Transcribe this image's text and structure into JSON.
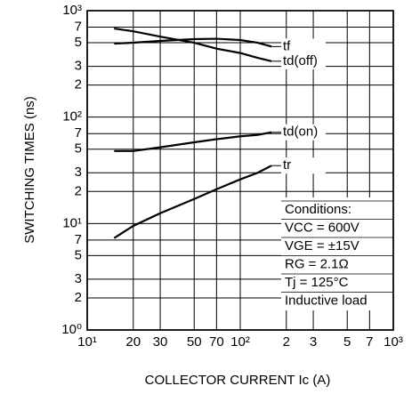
{
  "chart_data": {
    "type": "line",
    "x_label": "COLLECTOR CURRENT  Ic (A)",
    "y_label": "SWITCHING TIMES (ns)",
    "xlog": true,
    "ylog": true,
    "grid": true,
    "xlim": [
      10,
      1000
    ],
    "ylim": [
      1,
      1000
    ],
    "xticks": [
      {
        "value": 10,
        "label": "10¹"
      },
      20,
      30,
      50,
      70,
      {
        "value": 100,
        "label": "10²"
      },
      {
        "value": 200,
        "label": "2"
      },
      {
        "value": 300,
        "label": "3"
      },
      {
        "value": 500,
        "label": "5"
      },
      {
        "value": 700,
        "label": "7"
      },
      {
        "value": 1000,
        "label": "10³"
      }
    ],
    "yticks": [
      {
        "value": 1,
        "label": "10⁰"
      },
      2,
      3,
      5,
      7,
      {
        "value": 10,
        "label": "10¹"
      },
      {
        "value": 20,
        "label": "2"
      },
      {
        "value": 30,
        "label": "3"
      },
      {
        "value": 50,
        "label": "5"
      },
      {
        "value": 70,
        "label": "7"
      },
      {
        "value": 100,
        "label": "10²"
      },
      {
        "value": 200,
        "label": "2"
      },
      {
        "value": 300,
        "label": "3"
      },
      {
        "value": 500,
        "label": "5"
      },
      {
        "value": 700,
        "label": "7"
      },
      {
        "value": 1000,
        "label": "10³"
      }
    ],
    "x": [
      15,
      20,
      30,
      50,
      70,
      100,
      130,
      160
    ],
    "series": [
      {
        "name": "tf",
        "color": "#000000",
        "values": [
          490,
          500,
          520,
          540,
          545,
          530,
          500,
          460
        ]
      },
      {
        "name": "td(off)",
        "color": "#000000",
        "values": [
          680,
          640,
          570,
          500,
          440,
          400,
          360,
          335
        ]
      },
      {
        "name": "td(on)",
        "color": "#000000",
        "values": [
          48,
          48,
          52,
          58,
          62,
          66,
          68,
          72
        ]
      },
      {
        "name": "tr",
        "color": "#000000",
        "values": [
          7.3,
          9.5,
          12.5,
          17,
          21,
          26,
          30,
          35
        ]
      }
    ],
    "conditions": [
      "Conditions:",
      "VCC = 600V",
      "VGE = ±15V",
      "RG = 2.1Ω",
      "Tj = 125°C",
      "Inductive load"
    ]
  }
}
